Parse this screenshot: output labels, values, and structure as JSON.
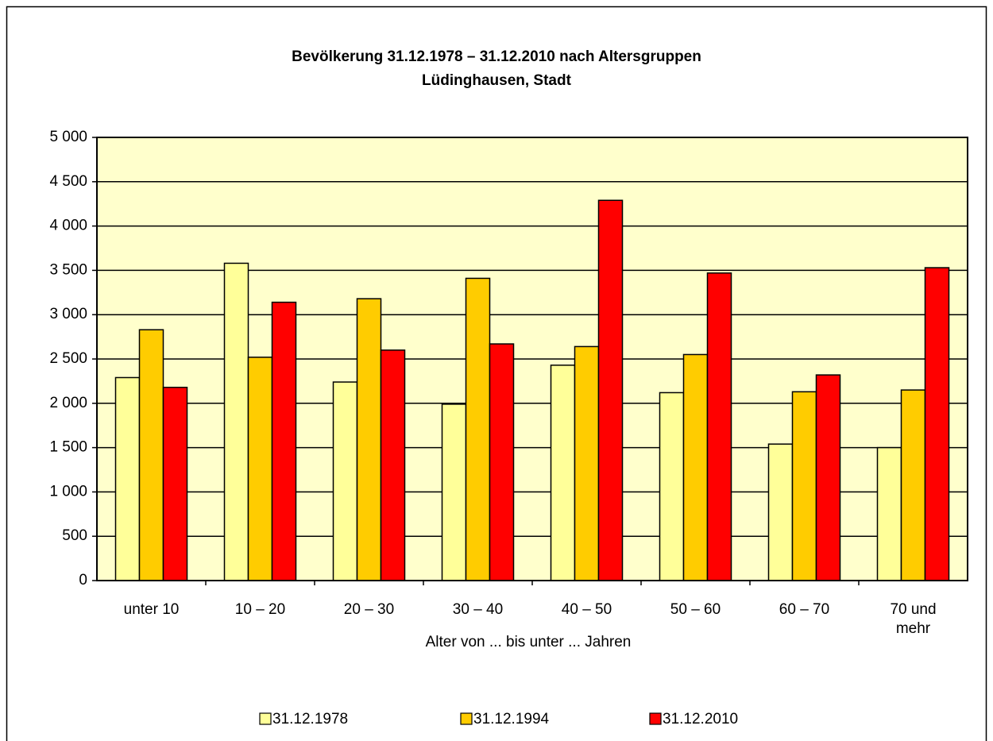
{
  "chart_data": {
    "type": "bar",
    "title": "Bevölkerung 31.12.1978 – 31.12.2010 nach Altersgruppen",
    "subtitle": "Lüdinghausen, Stadt",
    "x_label": "Alter von ... bis unter ... Jahren",
    "categories": [
      "unter 10",
      "10 – 20",
      "20 – 30",
      "30 – 40",
      "40 – 50",
      "50 – 60",
      "60 – 70",
      "70 und mehr"
    ],
    "series": [
      {
        "name": "31.12.1978",
        "color": "#ffff99",
        "values": [
          2290,
          3580,
          2240,
          1990,
          2430,
          2120,
          1540,
          1500
        ]
      },
      {
        "name": "31.12.1994",
        "color": "#ffcc00",
        "values": [
          2830,
          2520,
          3180,
          3410,
          2640,
          2550,
          2130,
          2150
        ]
      },
      {
        "name": "31.12.2010",
        "color": "#ff0000",
        "values": [
          2180,
          3140,
          2600,
          2670,
          4290,
          3470,
          2320,
          3530
        ]
      }
    ],
    "ylim": [
      0,
      5000
    ],
    "yticks": [
      0,
      500,
      {
        "value": 1000,
        "label": "1 000"
      },
      {
        "value": 1500,
        "label": "1 500"
      },
      {
        "value": 2000,
        "label": "2 000"
      },
      {
        "value": 2500,
        "label": "2 500"
      },
      {
        "value": 3000,
        "label": "3 000"
      },
      {
        "value": 3500,
        "label": "3 500"
      },
      {
        "value": 4000,
        "label": "4 000"
      },
      {
        "value": 4500,
        "label": "4 500"
      },
      {
        "value": 5000,
        "label": "5 000"
      }
    ],
    "grid": true,
    "legend": "bottom",
    "plot_background": "#ffffcc"
  }
}
